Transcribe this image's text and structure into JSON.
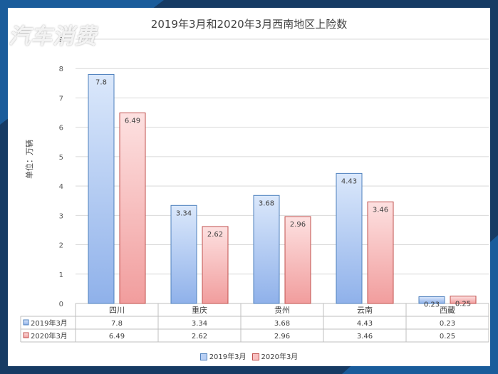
{
  "watermark": "汽车消费",
  "chart_data": {
    "type": "bar",
    "title": "2019年3月和2020年3月西南地区上险数",
    "ylabel": "单位：万辆",
    "xlabel": "",
    "categories": [
      "四川",
      "重庆",
      "贵州",
      "云南",
      "西藏"
    ],
    "series": [
      {
        "name": "2019年3月",
        "values": [
          7.8,
          3.34,
          3.68,
          4.43,
          0.23
        ],
        "labels": [
          "7.8",
          "3.34",
          "3.68",
          "4.43",
          "0.23"
        ],
        "color": "#4f81bd"
      },
      {
        "name": "2020年3月",
        "values": [
          6.49,
          2.62,
          2.96,
          3.46,
          0.25
        ],
        "labels": [
          "6.49",
          "2.62",
          "2.96",
          "3.46",
          "0.25"
        ],
        "color": "#c0504d"
      }
    ],
    "ylim": [
      0,
      9
    ],
    "yticks": [
      "0",
      "1",
      "2",
      "3",
      "4",
      "5",
      "6",
      "7",
      "8",
      "9"
    ],
    "grid": true,
    "data_table": true,
    "legend": "bottom"
  },
  "colors": {
    "frame": "#163b64",
    "accent": "#1f78c8"
  }
}
